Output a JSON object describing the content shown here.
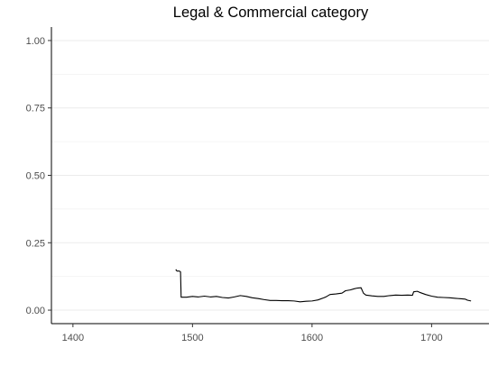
{
  "chart_data": {
    "type": "line",
    "title": "Legal & Commercial category",
    "xlabel": "",
    "ylabel": "",
    "xlim": [
      1382,
      1748
    ],
    "ylim": [
      -0.05,
      1.05
    ],
    "x_ticks": [
      1400,
      1500,
      1600,
      1700
    ],
    "y_ticks": [
      0.0,
      0.25,
      0.5,
      0.75,
      1.0
    ],
    "y_tick_labels": [
      "0.00",
      "0.25",
      "0.50",
      "0.75",
      "1.00"
    ],
    "grid": {
      "horizontal": true,
      "vertical": false
    },
    "series": [
      {
        "color": "#000000",
        "points": [
          [
            1486,
            0.151
          ],
          [
            1487,
            0.145
          ],
          [
            1489,
            0.145
          ],
          [
            1490,
            0.142
          ],
          [
            1490.5,
            0.048
          ],
          [
            1495,
            0.048
          ],
          [
            1500,
            0.051
          ],
          [
            1505,
            0.049
          ],
          [
            1510,
            0.052
          ],
          [
            1515,
            0.049
          ],
          [
            1520,
            0.051
          ],
          [
            1525,
            0.047
          ],
          [
            1530,
            0.045
          ],
          [
            1535,
            0.049
          ],
          [
            1540,
            0.054
          ],
          [
            1545,
            0.051
          ],
          [
            1550,
            0.046
          ],
          [
            1555,
            0.043
          ],
          [
            1560,
            0.039
          ],
          [
            1565,
            0.036
          ],
          [
            1570,
            0.036
          ],
          [
            1575,
            0.035
          ],
          [
            1580,
            0.035
          ],
          [
            1585,
            0.034
          ],
          [
            1590,
            0.031
          ],
          [
            1595,
            0.033
          ],
          [
            1600,
            0.034
          ],
          [
            1605,
            0.038
          ],
          [
            1610,
            0.046
          ],
          [
            1612,
            0.05
          ],
          [
            1615,
            0.058
          ],
          [
            1620,
            0.06
          ],
          [
            1625,
            0.063
          ],
          [
            1628,
            0.072
          ],
          [
            1632,
            0.075
          ],
          [
            1635,
            0.079
          ],
          [
            1638,
            0.082
          ],
          [
            1641,
            0.083
          ],
          [
            1643,
            0.063
          ],
          [
            1645,
            0.056
          ],
          [
            1650,
            0.053
          ],
          [
            1655,
            0.051
          ],
          [
            1660,
            0.051
          ],
          [
            1665,
            0.054
          ],
          [
            1670,
            0.056
          ],
          [
            1675,
            0.055
          ],
          [
            1680,
            0.056
          ],
          [
            1684,
            0.055
          ],
          [
            1685,
            0.068
          ],
          [
            1688,
            0.07
          ],
          [
            1690,
            0.066
          ],
          [
            1695,
            0.058
          ],
          [
            1700,
            0.052
          ],
          [
            1705,
            0.048
          ],
          [
            1710,
            0.047
          ],
          [
            1715,
            0.046
          ],
          [
            1720,
            0.044
          ],
          [
            1725,
            0.042
          ],
          [
            1728,
            0.041
          ],
          [
            1730,
            0.037
          ],
          [
            1733,
            0.034
          ]
        ]
      }
    ]
  }
}
